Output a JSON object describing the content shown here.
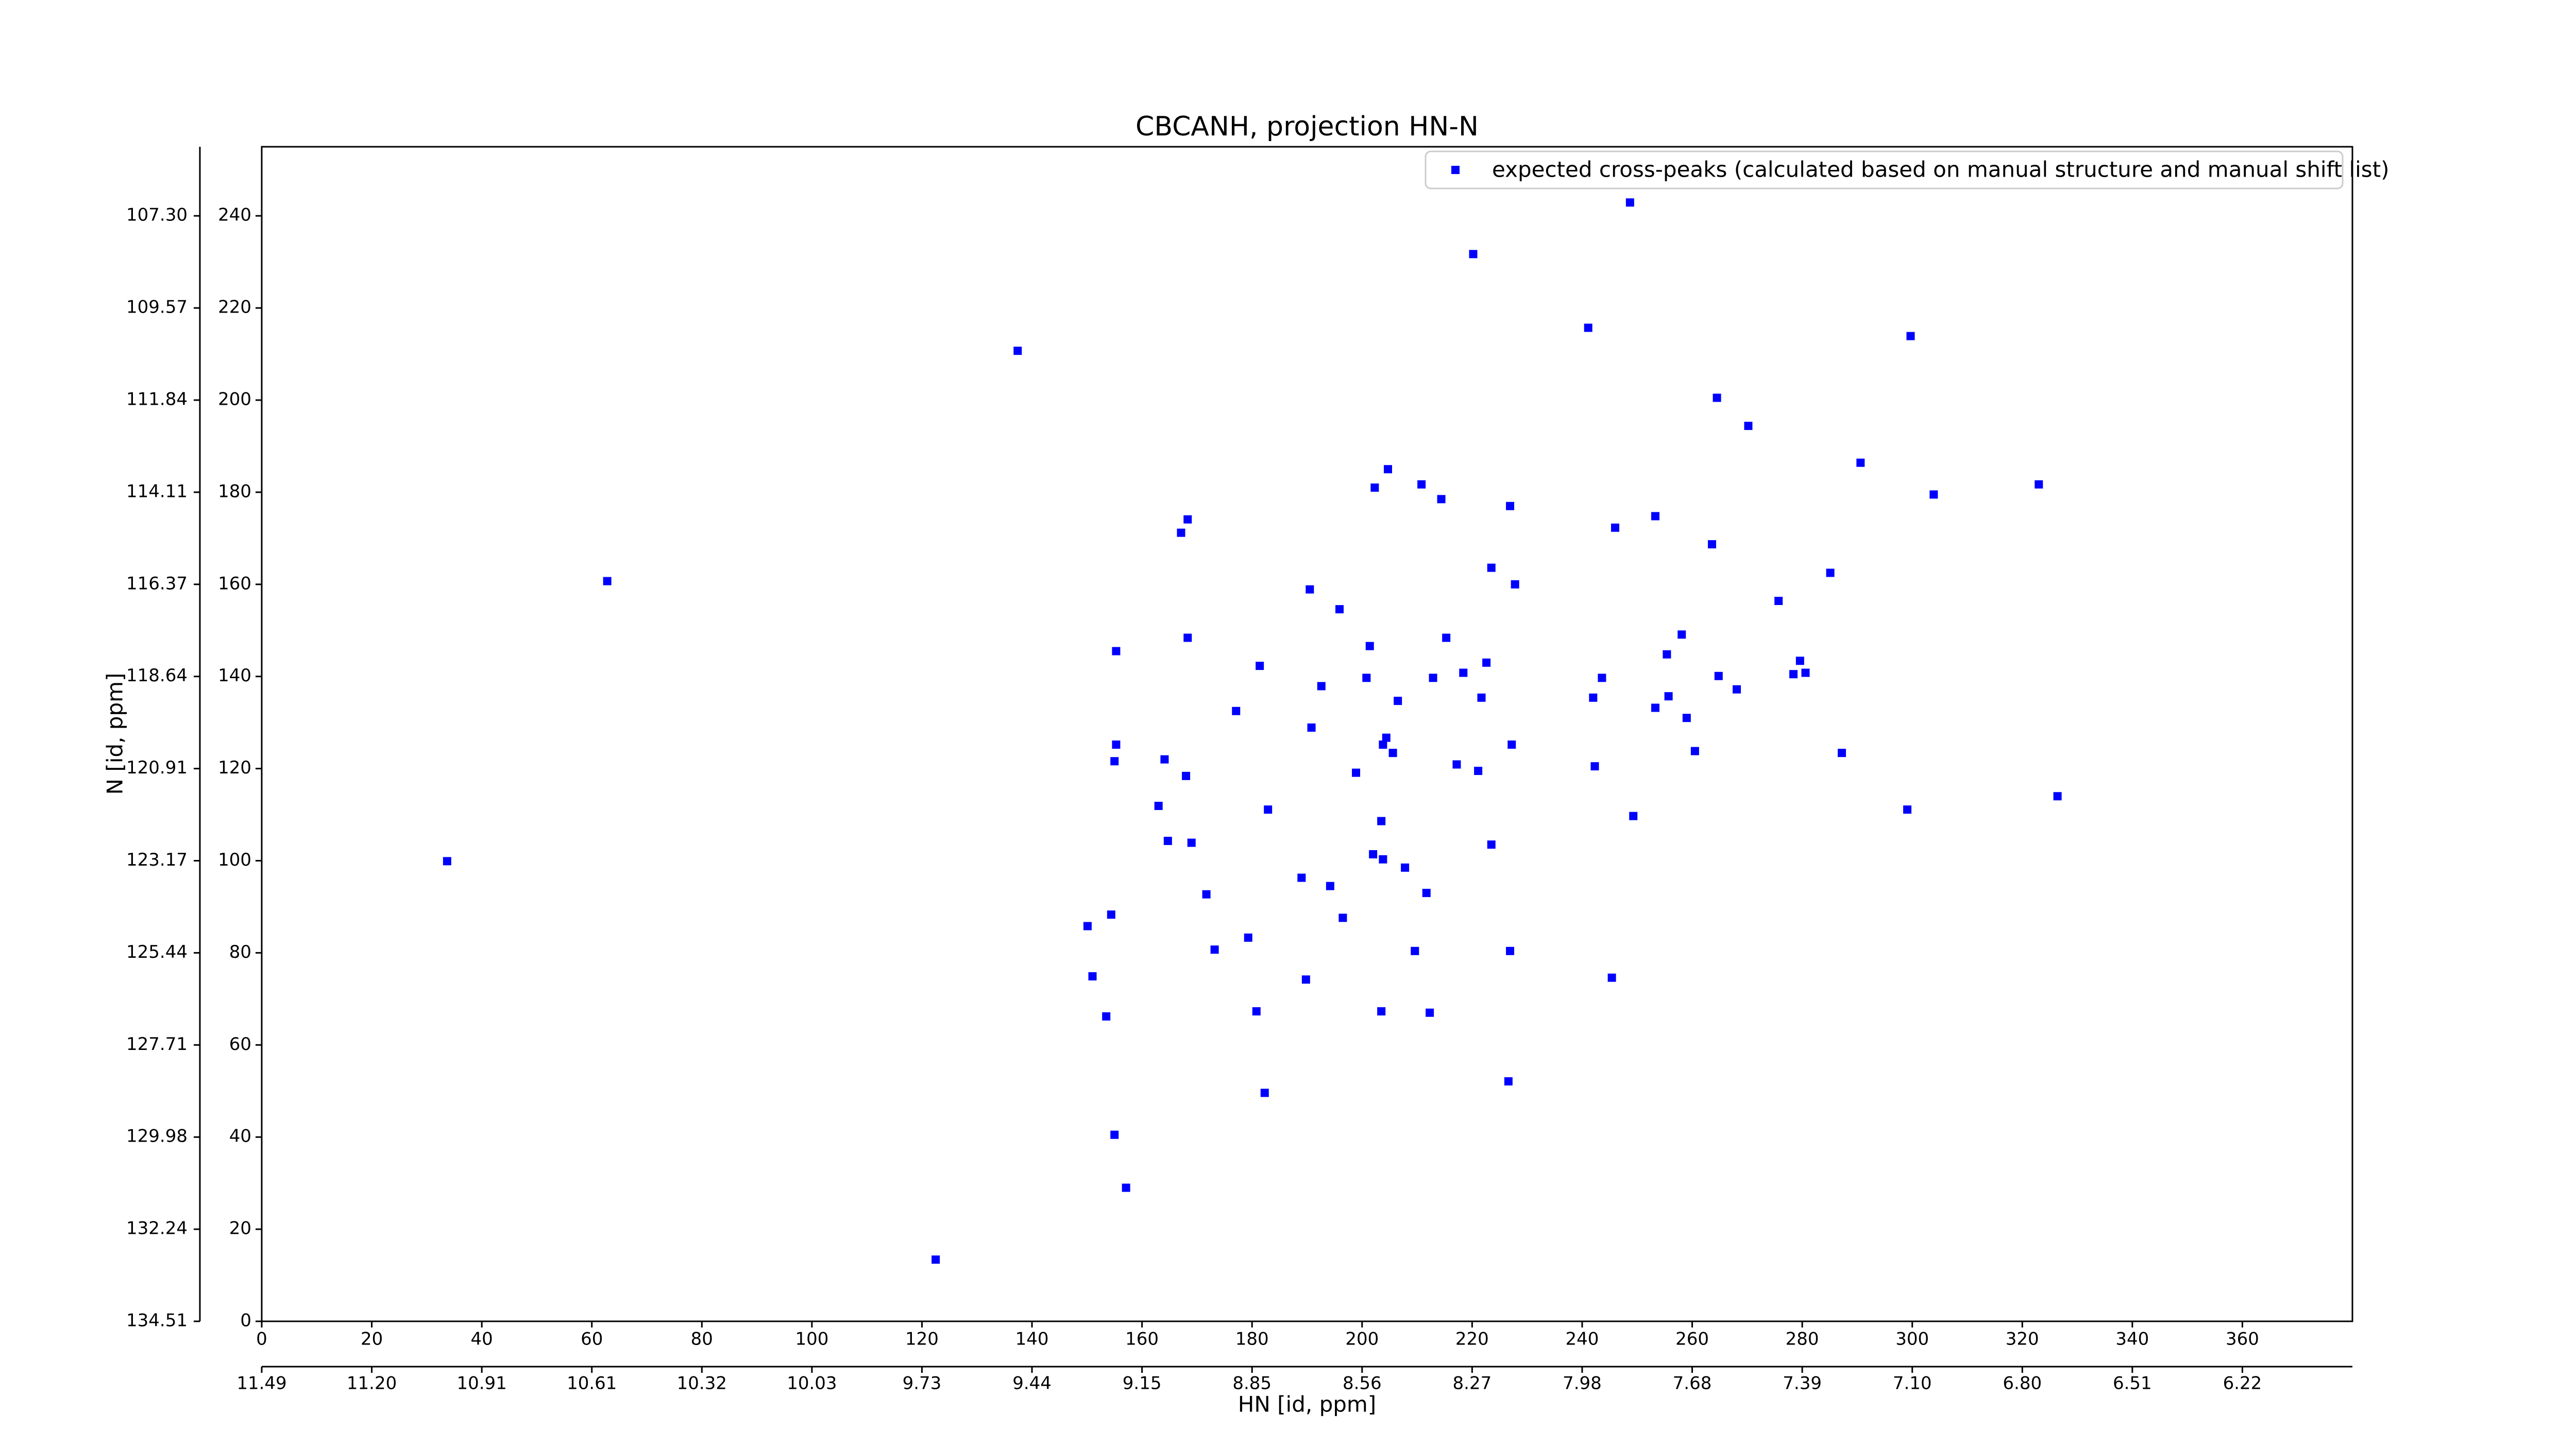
{
  "chart_data": {
    "type": "scatter",
    "title": "CBCANH, projection HN-N",
    "x_label": "HN [id, ppm]",
    "y_label": "N [id, ppm]",
    "xlim": [
      0,
      380
    ],
    "ylim": [
      0,
      255
    ],
    "xticks": [
      0,
      20,
      40,
      60,
      80,
      100,
      120,
      140,
      160,
      180,
      200,
      220,
      240,
      260,
      280,
      300,
      320,
      340,
      360
    ],
    "yticks": [
      0,
      20,
      40,
      60,
      80,
      100,
      120,
      140,
      160,
      180,
      200,
      220,
      240
    ],
    "x2ticks": [
      {
        "value": 0,
        "label": "11.49"
      },
      {
        "value": 20,
        "label": "11.20"
      },
      {
        "value": 40,
        "label": "10.91"
      },
      {
        "value": 60,
        "label": "10.61"
      },
      {
        "value": 80,
        "label": "10.32"
      },
      {
        "value": 100,
        "label": "10.03"
      },
      {
        "value": 120,
        "label": "9.73"
      },
      {
        "value": 140,
        "label": "9.44"
      },
      {
        "value": 160,
        "label": "9.15"
      },
      {
        "value": 180,
        "label": "8.85"
      },
      {
        "value": 200,
        "label": "8.56"
      },
      {
        "value": 220,
        "label": "8.27"
      },
      {
        "value": 240,
        "label": "7.98"
      },
      {
        "value": 260,
        "label": "7.68"
      },
      {
        "value": 280,
        "label": "7.39"
      },
      {
        "value": 300,
        "label": "7.10"
      },
      {
        "value": 320,
        "label": "6.80"
      },
      {
        "value": 340,
        "label": "6.51"
      },
      {
        "value": 360,
        "label": "6.22"
      }
    ],
    "y2ticks": [
      {
        "value": 240,
        "label": "107.30"
      },
      {
        "value": 220,
        "label": "109.57"
      },
      {
        "value": 200,
        "label": "111.84"
      },
      {
        "value": 180,
        "label": "114.11"
      },
      {
        "value": 160,
        "label": "116.37"
      },
      {
        "value": 140,
        "label": "118.64"
      },
      {
        "value": 120,
        "label": "120.91"
      },
      {
        "value": 100,
        "label": "123.17"
      },
      {
        "value": 80,
        "label": "125.44"
      },
      {
        "value": 60,
        "label": "127.71"
      },
      {
        "value": 40,
        "label": "129.98"
      },
      {
        "value": 20,
        "label": "132.24"
      },
      {
        "value": 0,
        "label": "134.51"
      }
    ],
    "legend_position": "upper right",
    "series": [
      {
        "name": "expected cross-peaks (calculated based on manual structure and manual shift list)",
        "color": "#0000ff",
        "x": [
          248.7,
          220.2,
          241.1,
          137.4,
          299.7,
          264.5,
          270.2,
          290.6,
          303.9,
          323.0,
          204.7,
          210.8,
          202.3,
          214.4,
          226.9,
          246.0,
          253.3,
          168.3,
          167.1,
          263.6,
          223.5,
          227.8,
          285.1,
          62.8,
          190.5,
          195.9,
          275.7,
          215.3,
          168.3,
          201.4,
          155.3,
          258.1,
          255.4,
          222.6,
          279.6,
          181.4,
          280.6,
          278.4,
          192.6,
          200.8,
          212.9,
          218.4,
          264.8,
          268.1,
          243.6,
          242.0,
          206.5,
          221.7,
          177.1,
          255.7,
          253.3,
          259.0,
          190.8,
          204.4,
          203.8,
          205.6,
          155.3,
          155.0,
          260.5,
          287.2,
          227.2,
          242.3,
          217.2,
          221.1,
          198.9,
          164.1,
          168.0,
          326.4,
          163.0,
          182.9,
          299.1,
          249.3,
          203.5,
          164.7,
          169.0,
          223.5,
          33.7,
          202.0,
          203.8,
          207.8,
          189.0,
          194.2,
          211.7,
          171.7,
          196.5,
          154.4,
          150.1,
          179.3,
          226.9,
          209.6,
          173.2,
          151.0,
          245.4,
          189.8,
          180.8,
          203.5,
          212.3,
          153.5,
          226.6,
          182.3,
          155.0,
          157.1,
          122.5
        ],
        "values": [
          242.9,
          231.7,
          215.7,
          210.7,
          213.9,
          200.5,
          194.4,
          186.4,
          179.5,
          181.7,
          185.0,
          181.7,
          181.0,
          178.5,
          177.0,
          172.3,
          174.8,
          174.1,
          171.2,
          168.7,
          163.6,
          160.0,
          162.5,
          160.7,
          158.9,
          154.6,
          156.4,
          148.4,
          148.4,
          146.6,
          145.5,
          149.1,
          144.8,
          143.0,
          143.4,
          142.3,
          140.8,
          140.5,
          137.9,
          139.7,
          139.7,
          140.8,
          140.1,
          137.2,
          139.7,
          135.4,
          134.7,
          135.4,
          132.5,
          135.7,
          133.2,
          131.0,
          128.9,
          126.7,
          125.2,
          123.4,
          125.2,
          121.6,
          123.8,
          123.4,
          125.2,
          120.5,
          120.9,
          119.5,
          119.1,
          122.0,
          118.4,
          114.0,
          111.9,
          111.1,
          111.1,
          109.7,
          108.6,
          104.3,
          103.9,
          103.5,
          99.9,
          101.4,
          100.3,
          98.5,
          96.3,
          94.5,
          93.0,
          92.7,
          87.6,
          88.3,
          85.8,
          83.3,
          80.4,
          80.4,
          80.7,
          74.9,
          74.6,
          74.2,
          67.3,
          67.3,
          67.0,
          66.2,
          52.1,
          49.6,
          40.5,
          29.0,
          13.4
        ]
      }
    ]
  }
}
